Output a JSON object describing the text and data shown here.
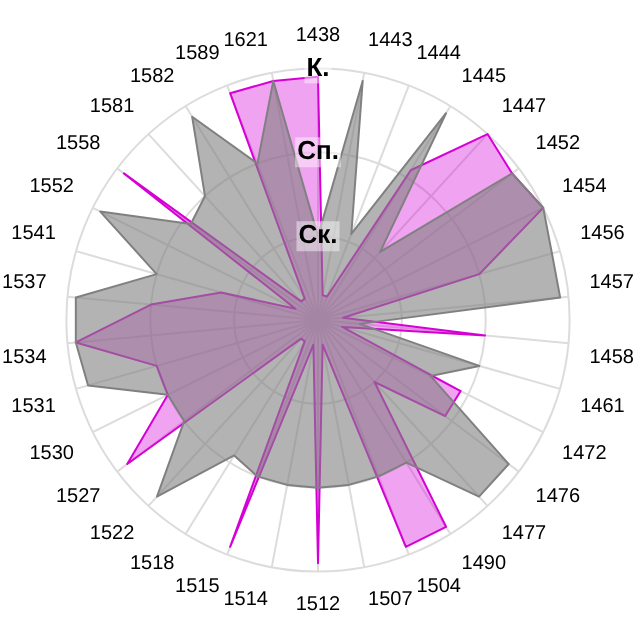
{
  "chart_data": {
    "type": "radar",
    "categories": [
      "1438",
      "1443",
      "1444",
      "1445",
      "1447",
      "1452",
      "1454",
      "1456",
      "1457",
      "1458",
      "1461",
      "1472",
      "1476",
      "1477",
      "1490",
      "1504",
      "1507",
      "1512",
      "1514",
      "1515",
      "1518",
      "1522",
      "1527",
      "1530",
      "1531",
      "1534",
      "1537",
      "1541",
      "1552",
      "1558",
      "1581",
      "1582",
      "1589",
      "1621"
    ],
    "series": [
      {
        "color": "#808080",
        "values": [
          1.0,
          2.9,
          1.1,
          2.9,
          1.1,
          2.9,
          3,
          2.9,
          2.9,
          0.5,
          2.0,
          1.5,
          2.85,
          2.85,
          2.0,
          2.0,
          2.0,
          2.0,
          2.0,
          2.0,
          1.9,
          2.85,
          2.0,
          2.0,
          2.85,
          2.9,
          2.9,
          2.0,
          2.9,
          1.9,
          2.0,
          2.85,
          2.0,
          2.9
        ]
      },
      {
        "color": "#d600d6",
        "values": [
          2.9,
          0.3,
          0.3,
          2.1,
          3,
          2.9,
          3,
          2.0,
          0.3,
          2.0,
          0.3,
          1.9,
          1.9,
          1.0,
          2.9,
          2.9,
          0.3,
          2.9,
          0.3,
          2.9,
          0.3,
          0.3,
          2.85,
          2.0,
          2.0,
          2.9,
          2.0,
          1.2,
          0.3,
          2.9,
          0.3,
          0.3,
          2.9,
          2.9
        ]
      }
    ],
    "ylim": [
      0,
      3
    ],
    "yticks": [
      {
        "value": 1,
        "label": "Ск."
      },
      {
        "value": 2,
        "label": "Сп."
      },
      {
        "value": 3,
        "label": "К."
      }
    ],
    "grid": true,
    "marker": "none",
    "legend": false
  }
}
